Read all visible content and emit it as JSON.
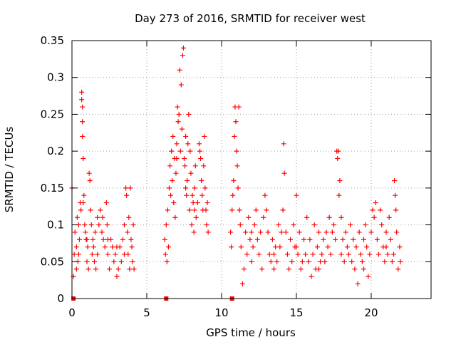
{
  "chart_data": {
    "type": "scatter",
    "title": "Day 273 of 2016, SRMTID for receiver west",
    "xlabel": "GPS time / hours",
    "ylabel": "SRMTID / TECUs",
    "xlim": [
      0,
      24
    ],
    "ylim": [
      0,
      0.35
    ],
    "xticks": [
      0,
      5,
      10,
      15,
      20
    ],
    "xtick_labels": [
      "0",
      "5",
      "10",
      "15",
      "20"
    ],
    "yticks": [
      0,
      0.05,
      0.1,
      0.15,
      0.2,
      0.25,
      0.3,
      0.35
    ],
    "ytick_labels": [
      "0",
      "0.05",
      "0.1",
      "0.15",
      "0.2",
      "0.25",
      "0.3",
      "0.35"
    ],
    "grid": true,
    "marker": "plus",
    "series_color": "#ff0000",
    "series": [
      {
        "name": "SRMTID",
        "points": [
          [
            0.0,
            0.15
          ],
          [
            0.1,
            0.03
          ],
          [
            0.15,
            0.06
          ],
          [
            0.2,
            0.09
          ],
          [
            0.3,
            0.07
          ],
          [
            0.3,
            0.04
          ],
          [
            0.35,
            0.11
          ],
          [
            0.4,
            0.05
          ],
          [
            0.45,
            0.1
          ],
          [
            0.5,
            0.08
          ],
          [
            0.55,
            0.13
          ],
          [
            0.6,
            0.12
          ],
          [
            0.65,
            0.28
          ],
          [
            0.65,
            0.27
          ],
          [
            0.7,
            0.26
          ],
          [
            0.7,
            0.24
          ],
          [
            0.7,
            0.22
          ],
          [
            0.75,
            0.19
          ],
          [
            0.75,
            0.13
          ],
          [
            0.8,
            0.14
          ],
          [
            0.85,
            0.1
          ],
          [
            0.9,
            0.09
          ],
          [
            0.95,
            0.08
          ],
          [
            1.0,
            0.05
          ],
          [
            1.05,
            0.07
          ],
          [
            1.1,
            0.04
          ],
          [
            1.15,
            0.17
          ],
          [
            1.2,
            0.16
          ],
          [
            1.25,
            0.12
          ],
          [
            1.3,
            0.1
          ],
          [
            1.35,
            0.06
          ],
          [
            1.4,
            0.08
          ],
          [
            1.45,
            0.07
          ],
          [
            1.5,
            0.05
          ],
          [
            1.55,
            0.09
          ],
          [
            1.6,
            0.04
          ],
          [
            1.7,
            0.06
          ],
          [
            1.8,
            0.1
          ],
          [
            1.9,
            0.12
          ],
          [
            2.0,
            0.09
          ],
          [
            2.05,
            0.11
          ],
          [
            2.1,
            0.08
          ],
          [
            2.2,
            0.07
          ],
          [
            2.3,
            0.13
          ],
          [
            2.35,
            0.1
          ],
          [
            2.4,
            0.06
          ],
          [
            2.5,
            0.04
          ],
          [
            2.6,
            0.08
          ],
          [
            2.7,
            0.07
          ],
          [
            2.8,
            0.05
          ],
          [
            2.9,
            0.06
          ],
          [
            3.0,
            0.03
          ],
          [
            3.1,
            0.04
          ],
          [
            3.2,
            0.07
          ],
          [
            3.3,
            0.05
          ],
          [
            3.4,
            0.08
          ],
          [
            3.5,
            0.1
          ],
          [
            3.6,
            0.15
          ],
          [
            3.65,
            0.14
          ],
          [
            3.7,
            0.09
          ],
          [
            3.75,
            0.06
          ],
          [
            3.8,
            0.11
          ],
          [
            3.85,
            0.04
          ],
          [
            3.9,
            0.15
          ],
          [
            3.95,
            0.08
          ],
          [
            4.0,
            0.07
          ],
          [
            4.05,
            0.05
          ],
          [
            4.1,
            0.1
          ],
          [
            4.15,
            0.04
          ],
          [
            0.45,
            0.06
          ],
          [
            1.0,
            0.08
          ],
          [
            1.7,
            0.11
          ],
          [
            2.4,
            0.08
          ],
          [
            3.0,
            0.07
          ],
          [
            3.5,
            0.06
          ],
          [
            6.2,
            0.08
          ],
          [
            6.25,
            0.06
          ],
          [
            6.3,
            0.1
          ],
          [
            6.35,
            0.05
          ],
          [
            6.4,
            0.12
          ],
          [
            6.45,
            0.07
          ],
          [
            6.5,
            0.15
          ],
          [
            6.55,
            0.18
          ],
          [
            6.6,
            0.14
          ],
          [
            6.65,
            0.2
          ],
          [
            6.7,
            0.16
          ],
          [
            6.75,
            0.22
          ],
          [
            6.8,
            0.13
          ],
          [
            6.85,
            0.19
          ],
          [
            6.9,
            0.11
          ],
          [
            6.95,
            0.17
          ],
          [
            7.0,
            0.21
          ],
          [
            7.05,
            0.26
          ],
          [
            7.1,
            0.24
          ],
          [
            7.15,
            0.25
          ],
          [
            7.2,
            0.31
          ],
          [
            7.25,
            0.2
          ],
          [
            7.3,
            0.29
          ],
          [
            7.35,
            0.23
          ],
          [
            7.4,
            0.33
          ],
          [
            7.45,
            0.34
          ],
          [
            7.5,
            0.19
          ],
          [
            7.55,
            0.18
          ],
          [
            7.6,
            0.15
          ],
          [
            7.65,
            0.14
          ],
          [
            7.7,
            0.16
          ],
          [
            7.75,
            0.21
          ],
          [
            7.8,
            0.25
          ],
          [
            7.85,
            0.12
          ],
          [
            7.9,
            0.2
          ],
          [
            7.95,
            0.17
          ],
          [
            8.0,
            0.1
          ],
          [
            8.05,
            0.14
          ],
          [
            8.1,
            0.13
          ],
          [
            8.15,
            0.09
          ],
          [
            8.2,
            0.15
          ],
          [
            8.25,
            0.18
          ],
          [
            8.3,
            0.11
          ],
          [
            8.4,
            0.13
          ],
          [
            8.5,
            0.21
          ],
          [
            8.55,
            0.2
          ],
          [
            8.6,
            0.19
          ],
          [
            8.65,
            0.16
          ],
          [
            8.7,
            0.14
          ],
          [
            8.75,
            0.12
          ],
          [
            8.8,
            0.18
          ],
          [
            8.85,
            0.22
          ],
          [
            8.9,
            0.15
          ],
          [
            8.95,
            0.12
          ],
          [
            9.0,
            0.1
          ],
          [
            9.05,
            0.13
          ],
          [
            9.1,
            0.09
          ],
          [
            7.0,
            0.19
          ],
          [
            7.6,
            0.22
          ],
          [
            8.2,
            0.12
          ],
          [
            10.6,
            0.09
          ],
          [
            10.65,
            0.07
          ],
          [
            10.7,
            0.12
          ],
          [
            10.75,
            0.14
          ],
          [
            10.8,
            0.16
          ],
          [
            10.85,
            0.22
          ],
          [
            10.9,
            0.26
          ],
          [
            10.95,
            0.24
          ],
          [
            11.0,
            0.2
          ],
          [
            11.05,
            0.18
          ],
          [
            11.1,
            0.15
          ],
          [
            11.15,
            0.26
          ],
          [
            11.2,
            0.12
          ],
          [
            11.25,
            0.1
          ],
          [
            11.3,
            0.07
          ],
          [
            11.4,
            0.02
          ],
          [
            11.5,
            0.04
          ],
          [
            11.6,
            0.09
          ],
          [
            11.7,
            0.06
          ],
          [
            11.8,
            0.11
          ],
          [
            11.9,
            0.08
          ],
          [
            12.0,
            0.05
          ],
          [
            12.1,
            0.07
          ],
          [
            12.2,
            0.1
          ],
          [
            12.3,
            0.12
          ],
          [
            12.4,
            0.08
          ],
          [
            12.5,
            0.06
          ],
          [
            12.6,
            0.09
          ],
          [
            12.7,
            0.04
          ],
          [
            12.8,
            0.11
          ],
          [
            12.9,
            0.14
          ],
          [
            13.0,
            0.12
          ],
          [
            13.1,
            0.09
          ],
          [
            13.2,
            0.06
          ],
          [
            13.3,
            0.05
          ],
          [
            13.4,
            0.08
          ],
          [
            13.5,
            0.04
          ],
          [
            13.6,
            0.07
          ],
          [
            13.7,
            0.05
          ],
          [
            13.8,
            0.1
          ],
          [
            13.9,
            0.07
          ],
          [
            14.0,
            0.09
          ],
          [
            14.1,
            0.12
          ],
          [
            14.15,
            0.21
          ],
          [
            14.2,
            0.17
          ],
          [
            14.3,
            0.09
          ],
          [
            14.4,
            0.06
          ],
          [
            14.5,
            0.04
          ],
          [
            14.6,
            0.08
          ],
          [
            14.7,
            0.05
          ],
          [
            14.8,
            0.1
          ],
          [
            14.9,
            0.07
          ],
          [
            15.0,
            0.14
          ],
          [
            15.1,
            0.06
          ],
          [
            15.2,
            0.09
          ],
          [
            15.3,
            0.04
          ],
          [
            15.4,
            0.05
          ],
          [
            15.5,
            0.08
          ],
          [
            15.6,
            0.06
          ],
          [
            15.7,
            0.11
          ],
          [
            15.8,
            0.05
          ],
          [
            15.9,
            0.08
          ],
          [
            16.0,
            0.03
          ],
          [
            16.1,
            0.06
          ],
          [
            16.2,
            0.1
          ],
          [
            16.3,
            0.04
          ],
          [
            16.4,
            0.07
          ],
          [
            16.5,
            0.09
          ],
          [
            16.6,
            0.05
          ],
          [
            16.7,
            0.06
          ],
          [
            16.8,
            0.08
          ],
          [
            16.9,
            0.05
          ],
          [
            17.0,
            0.09
          ],
          [
            17.1,
            0.07
          ],
          [
            17.2,
            0.11
          ],
          [
            17.3,
            0.06
          ],
          [
            17.4,
            0.09
          ],
          [
            17.5,
            0.1
          ],
          [
            17.6,
            0.08
          ],
          [
            17.7,
            0.2
          ],
          [
            17.75,
            0.19
          ],
          [
            17.8,
            0.2
          ],
          [
            17.85,
            0.14
          ],
          [
            17.9,
            0.16
          ],
          [
            18.0,
            0.11
          ],
          [
            18.1,
            0.08
          ],
          [
            18.2,
            0.05
          ],
          [
            18.3,
            0.09
          ],
          [
            18.4,
            0.07
          ],
          [
            18.5,
            0.06
          ],
          [
            18.6,
            0.1
          ],
          [
            18.7,
            0.05
          ],
          [
            18.8,
            0.08
          ],
          [
            18.9,
            0.04
          ],
          [
            19.0,
            0.07
          ],
          [
            19.1,
            0.02
          ],
          [
            19.2,
            0.09
          ],
          [
            19.3,
            0.06
          ],
          [
            19.4,
            0.05
          ],
          [
            19.5,
            0.08
          ],
          [
            19.6,
            0.1
          ],
          [
            19.7,
            0.07
          ],
          [
            19.8,
            0.03
          ],
          [
            19.9,
            0.06
          ],
          [
            20.0,
            0.09
          ],
          [
            20.1,
            0.12
          ],
          [
            20.2,
            0.11
          ],
          [
            20.3,
            0.13
          ],
          [
            20.4,
            0.08
          ],
          [
            20.5,
            0.06
          ],
          [
            20.6,
            0.12
          ],
          [
            20.7,
            0.1
          ],
          [
            20.8,
            0.07
          ],
          [
            20.9,
            0.05
          ],
          [
            21.0,
            0.09
          ],
          [
            21.1,
            0.06
          ],
          [
            21.2,
            0.11
          ],
          [
            21.3,
            0.08
          ],
          [
            21.4,
            0.05
          ],
          [
            21.5,
            0.06
          ],
          [
            21.55,
            0.16
          ],
          [
            21.6,
            0.14
          ],
          [
            21.65,
            0.12
          ],
          [
            21.7,
            0.09
          ],
          [
            21.8,
            0.04
          ],
          [
            21.9,
            0.07
          ],
          [
            21.95,
            0.05
          ],
          [
            12.0,
            0.09
          ],
          [
            13.5,
            0.06
          ],
          [
            15.0,
            0.07
          ],
          [
            16.5,
            0.04
          ],
          [
            18.0,
            0.06
          ],
          [
            19.5,
            0.04
          ],
          [
            21.0,
            0.07
          ]
        ]
      }
    ],
    "axis_markers": [
      {
        "x": 0.1,
        "y": 0
      },
      {
        "x": 6.3,
        "y": 0
      },
      {
        "x": 10.7,
        "y": 0
      }
    ]
  }
}
